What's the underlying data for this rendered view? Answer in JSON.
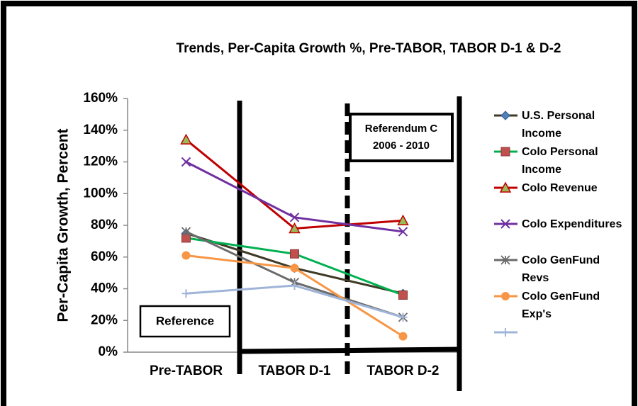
{
  "chart_data": {
    "type": "line",
    "title": "Trends, Per-Capita Growth %, Pre-TABOR, TABOR D-1 & D-2",
    "y_label": "Per-Capita Growth, Percent",
    "categories": [
      "Pre-TABOR",
      "TABOR D-1",
      "TABOR D-2"
    ],
    "ylim": [
      0,
      160
    ],
    "yticks": [
      {
        "value": 0,
        "label": "0%"
      },
      {
        "value": 20,
        "label": "20%"
      },
      {
        "value": 40,
        "label": "40%"
      },
      {
        "value": 60,
        "label": "60%"
      },
      {
        "value": 80,
        "label": "80%"
      },
      {
        "value": 100,
        "label": "100%"
      },
      {
        "value": 120,
        "label": "120%"
      },
      {
        "value": 140,
        "label": "140%"
      },
      {
        "value": 160,
        "label": "160%"
      }
    ],
    "annotations": [
      "Referendum C",
      "2006 - 2010",
      "Reference"
    ],
    "series": [
      {
        "name": "U.S. Personal Income",
        "color": "#3f3a26",
        "marker_color": "#4f81bd",
        "marker": "diamond",
        "values": [
          75,
          53,
          37
        ]
      },
      {
        "name": "Colo Personal Income",
        "color": "#00b050",
        "marker_color": "#c0504d",
        "marker": "square",
        "values": [
          72,
          62,
          36
        ]
      },
      {
        "name": "Colo Revenue",
        "color": "#c00000",
        "marker_color": "#9bbb59",
        "marker": "triangle",
        "values": [
          134,
          78,
          83
        ]
      },
      {
        "name": "Colo Expenditures",
        "color": "#7030a0",
        "marker_color": "#7030a0",
        "marker": "x",
        "values": [
          120,
          85,
          76
        ]
      },
      {
        "name": "Colo GenFund Revs",
        "color": "#6b6b6b",
        "marker_color": "#6b6b6b",
        "marker": "star",
        "values": [
          76,
          44,
          22
        ]
      },
      {
        "name": "Colo GenFund Exp's",
        "color": "#f79646",
        "marker_color": "#f79646",
        "marker": "circle",
        "values": [
          61,
          53,
          10
        ]
      },
      {
        "color": "#9fb4d8",
        "marker_color": "#9fb4d8",
        "marker": "plus",
        "values": [
          37,
          42,
          22
        ]
      }
    ]
  }
}
